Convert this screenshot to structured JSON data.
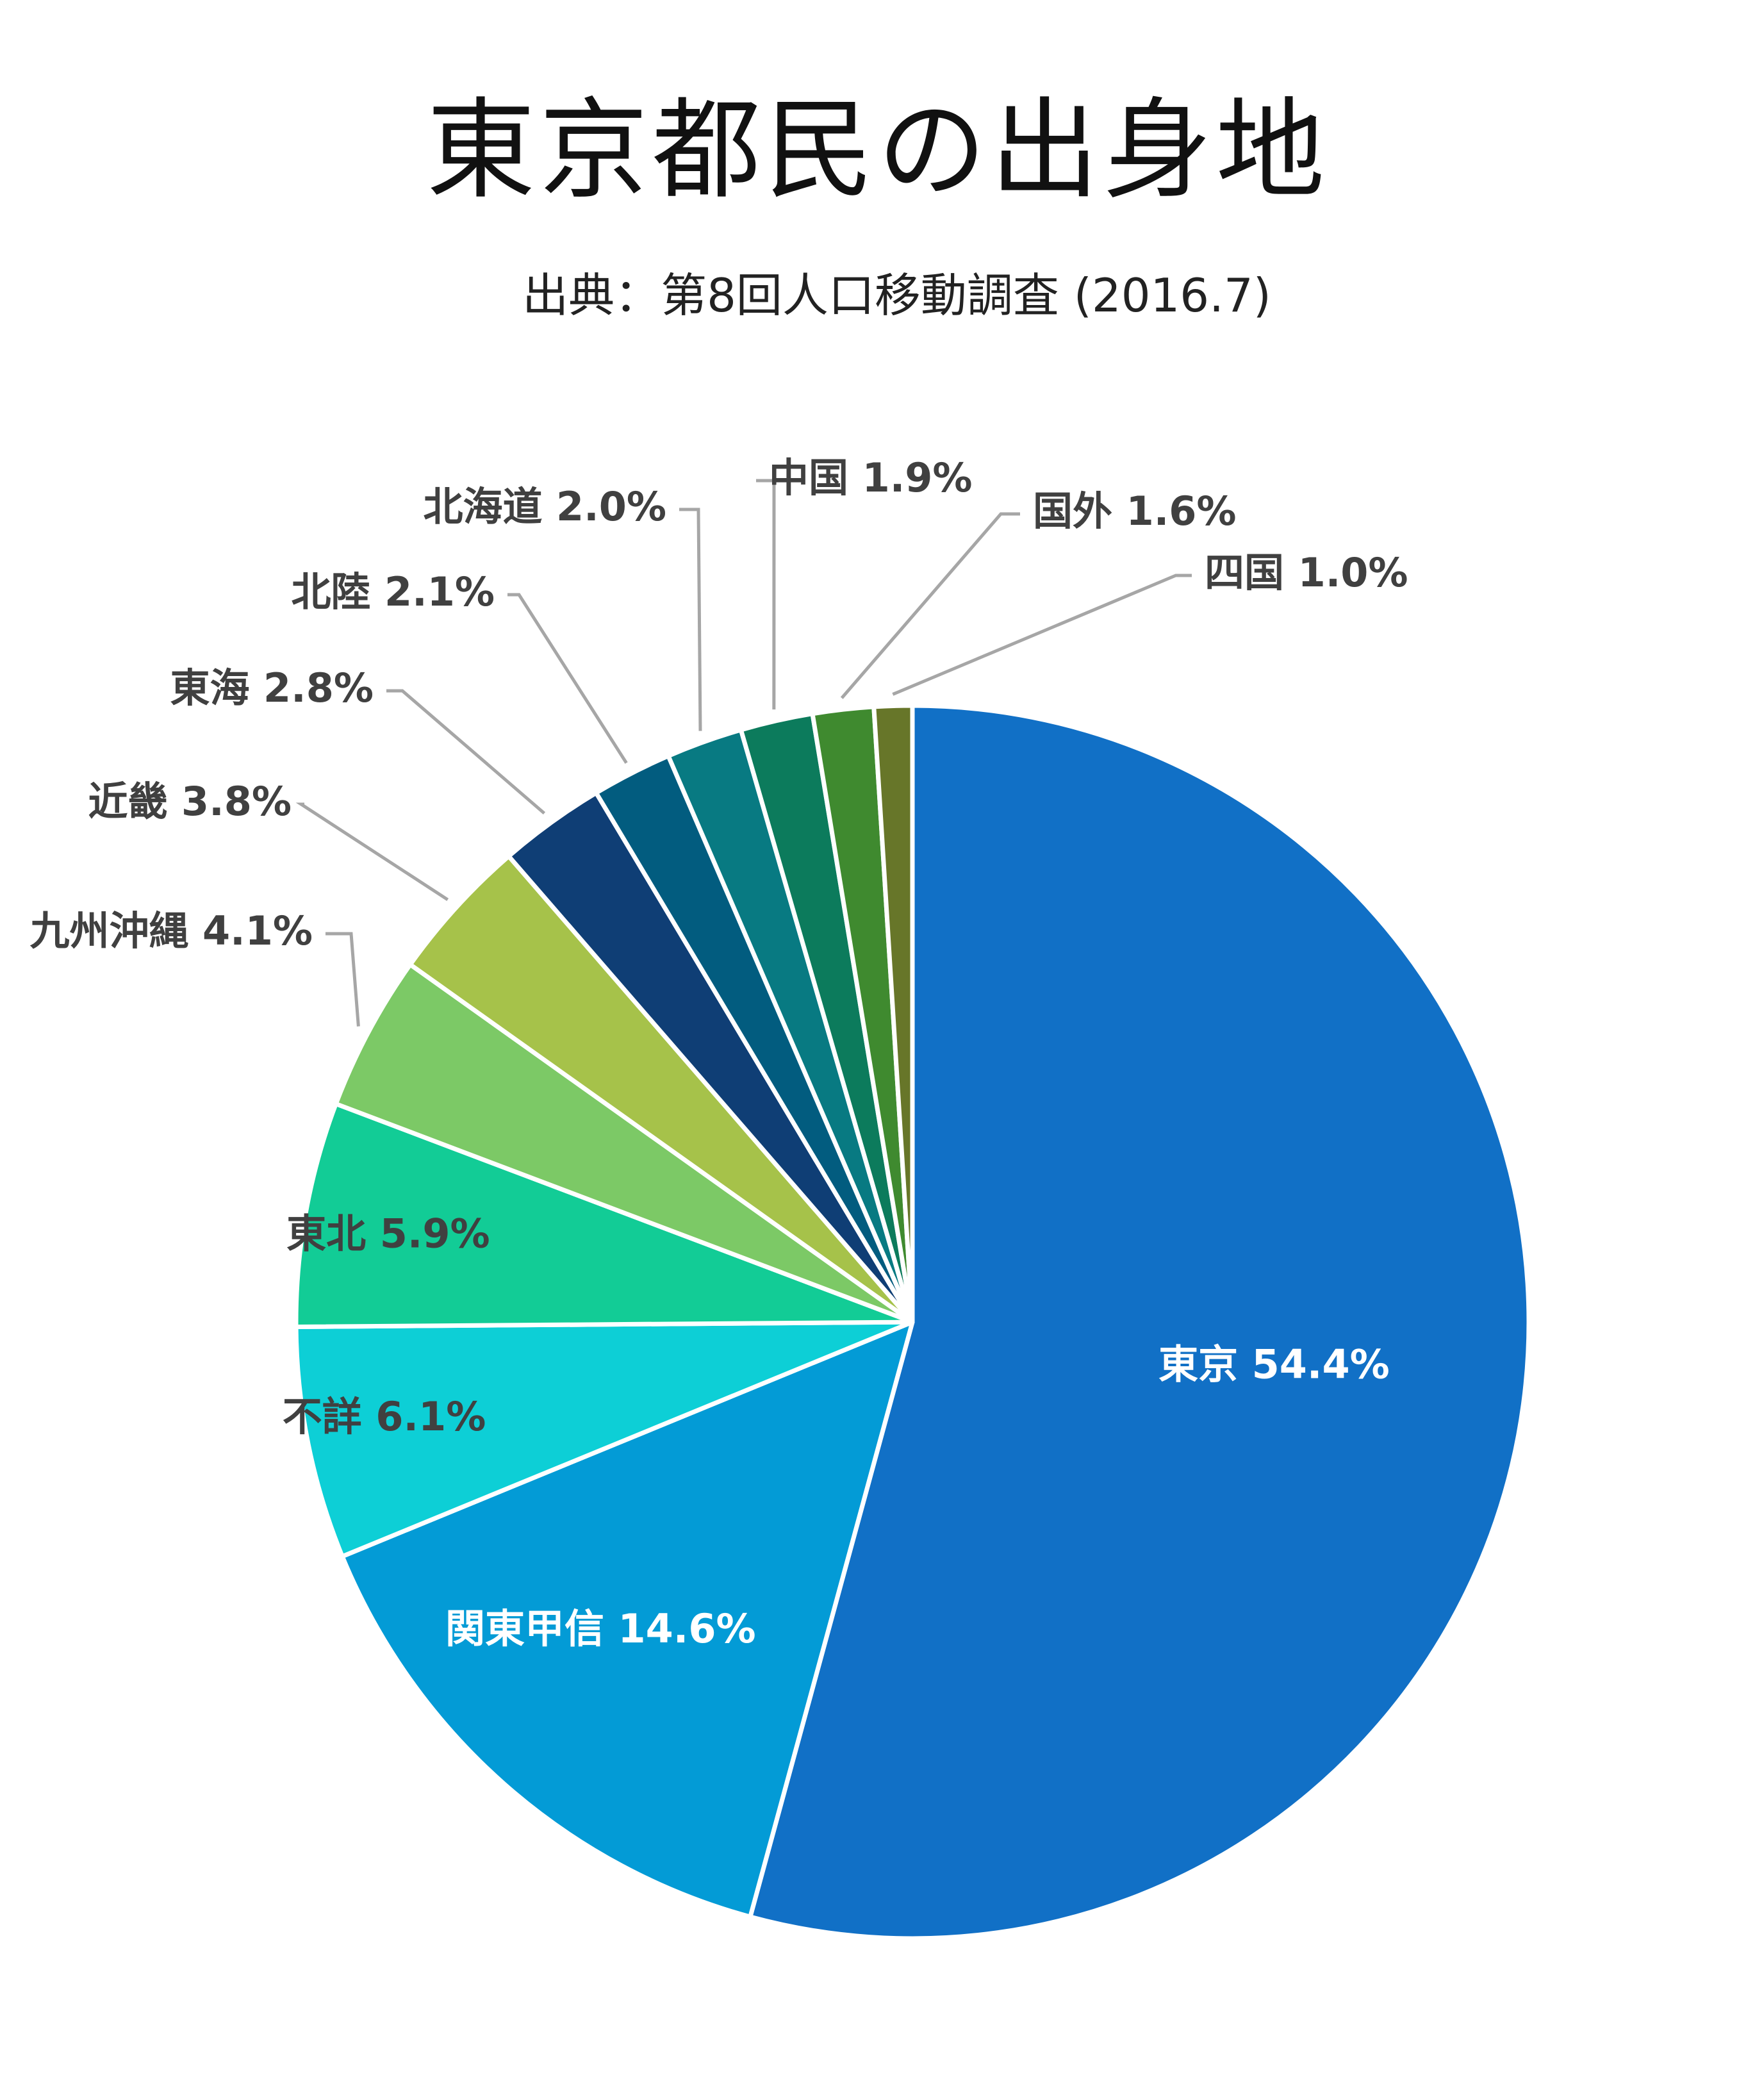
{
  "title": "東京都民の出身地",
  "subtitle": "出典：第8回人口移動調査 (2016.7)",
  "chart_data": {
    "type": "pie",
    "start": "12 o'clock",
    "direction": "clockwise",
    "slices": [
      {
        "label": "東京",
        "value": 54.4,
        "text": "東京 54.4%",
        "color": "#1170C6",
        "label_color": "#FFFFFF",
        "label_placement": "inside"
      },
      {
        "label": "関東甲信",
        "value": 14.6,
        "text": "関東甲信 14.6%",
        "color": "#039BD6",
        "label_color": "#FFFFFF",
        "label_placement": "inside"
      },
      {
        "label": "不詳",
        "value": 6.1,
        "text": "不詳 6.1%",
        "color": "#0DCFD6",
        "label_color": "#404040",
        "label_placement": "inside"
      },
      {
        "label": "東北",
        "value": 5.9,
        "text": "東北 5.9%",
        "color": "#12CC96",
        "label_color": "#404040",
        "label_placement": "inside"
      },
      {
        "label": "九州沖縄",
        "value": 4.1,
        "text": "九州沖縄 4.1%",
        "color": "#7CC966",
        "label_color": "#404040",
        "label_placement": "outside"
      },
      {
        "label": "近畿",
        "value": 3.8,
        "text": "近畿 3.8%",
        "color": "#A6C24A",
        "label_color": "#404040",
        "label_placement": "outside"
      },
      {
        "label": "東海",
        "value": 2.8,
        "text": "東海 2.8%",
        "color": "#0F3E75",
        "label_color": "#404040",
        "label_placement": "outside"
      },
      {
        "label": "北陸",
        "value": 2.1,
        "text": "北陸 2.1%",
        "color": "#025C7F",
        "label_color": "#404040",
        "label_placement": "outside"
      },
      {
        "label": "北海道",
        "value": 2.0,
        "text": "北海道 2.0%",
        "color": "#087A82",
        "label_color": "#404040",
        "label_placement": "outside"
      },
      {
        "label": "中国",
        "value": 1.9,
        "text": "中国 1.9%",
        "color": "#0C7B5C",
        "label_color": "#404040",
        "label_placement": "outside"
      },
      {
        "label": "国外",
        "value": 1.6,
        "text": "国外 1.6%",
        "color": "#3F8A2F",
        "label_color": "#404040",
        "label_placement": "outside"
      },
      {
        "label": "四国",
        "value": 1.0,
        "text": "四国 1.0%",
        "color": "#677629",
        "label_color": "#404040",
        "label_placement": "outside"
      }
    ],
    "slice_border_color": "#FFFFFF",
    "leader_line_color": "#A6A6A6"
  }
}
